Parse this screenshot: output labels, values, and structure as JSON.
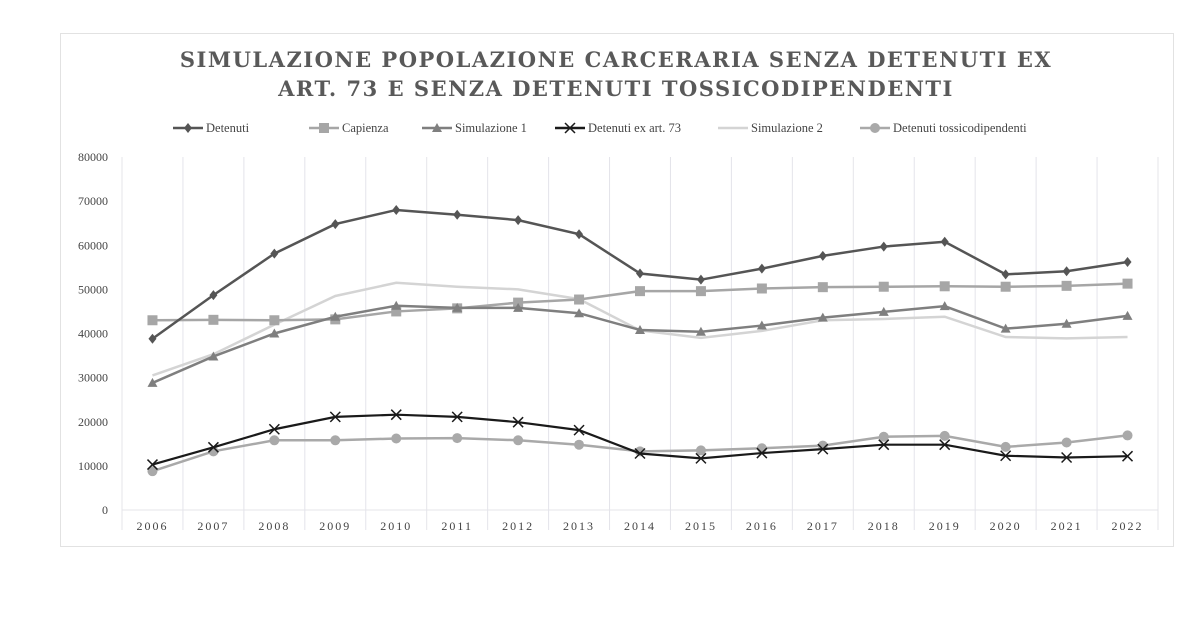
{
  "chart_data": {
    "type": "line",
    "title": [
      "SIMULAZIONE POPOLAZIONE CARCERARIA SENZA DETENUTI EX",
      "ART. 73 E SENZA DETENUTI TOSSICODIPENDENTI"
    ],
    "xlabel": "",
    "ylabel": "",
    "ylim": [
      0,
      80000
    ],
    "yticks": [
      "0",
      "10000",
      "20000",
      "30000",
      "40000",
      "50000",
      "60000",
      "70000",
      "80000"
    ],
    "grid": "vertical",
    "legend_position": "top",
    "categories": [
      "2006",
      "2007",
      "2008",
      "2009",
      "2010",
      "2011",
      "2012",
      "2013",
      "2014",
      "2015",
      "2016",
      "2017",
      "2018",
      "2019",
      "2020",
      "2021",
      "2022"
    ],
    "series": [
      {
        "name": "Detenuti",
        "color": "#555555",
        "marker": "diamond",
        "values": [
          38800,
          48700,
          58100,
          64800,
          68000,
          66900,
          65700,
          62500,
          53600,
          52200,
          54700,
          57600,
          59700,
          60800,
          53400,
          54100,
          56200
        ]
      },
      {
        "name": "Capienza",
        "color": "#a6a6a6",
        "marker": "square",
        "values": [
          43000,
          43100,
          43000,
          43200,
          45000,
          45700,
          47000,
          47700,
          49600,
          49600,
          50200,
          50500,
          50600,
          50700,
          50600,
          50800,
          51300
        ]
      },
      {
        "name": "Simulazione 1",
        "color": "#7f7f7f",
        "marker": "triangle",
        "values": [
          28800,
          34800,
          40000,
          43800,
          46300,
          45800,
          45800,
          44600,
          40800,
          40400,
          41800,
          43600,
          44900,
          46200,
          41100,
          42200,
          44000
        ]
      },
      {
        "name": "Detenuti ex art. 73",
        "color": "#1a1a1a",
        "marker": "x",
        "values": [
          10300,
          14200,
          18300,
          21100,
          21600,
          21100,
          19900,
          18100,
          12800,
          11700,
          12900,
          13800,
          14800,
          14800,
          12300,
          11900,
          12200
        ]
      },
      {
        "name": "Simulazione 2",
        "color": "#d4d4d4",
        "marker": "none",
        "values": [
          30500,
          35300,
          42000,
          48500,
          51500,
          50600,
          50000,
          47800,
          40700,
          39000,
          40600,
          43000,
          43300,
          43800,
          39200,
          38900,
          39200
        ]
      },
      {
        "name": "Detenuti tossicodipendenti",
        "color": "#a9a9a9",
        "marker": "circle",
        "values": [
          8800,
          13300,
          15800,
          15800,
          16200,
          16300,
          15800,
          14800,
          13300,
          13500,
          14000,
          14600,
          16600,
          16800,
          14300,
          15300,
          16900
        ]
      }
    ]
  }
}
